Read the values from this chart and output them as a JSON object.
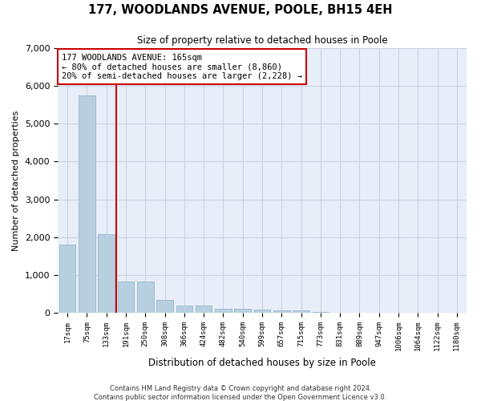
{
  "title": "177, WOODLANDS AVENUE, POOLE, BH15 4EH",
  "subtitle": "Size of property relative to detached houses in Poole",
  "xlabel": "Distribution of detached houses by size in Poole",
  "ylabel": "Number of detached properties",
  "categories": [
    "17sqm",
    "75sqm",
    "133sqm",
    "191sqm",
    "250sqm",
    "308sqm",
    "366sqm",
    "424sqm",
    "482sqm",
    "540sqm",
    "599sqm",
    "657sqm",
    "715sqm",
    "773sqm",
    "831sqm",
    "889sqm",
    "947sqm",
    "1006sqm",
    "1064sqm",
    "1122sqm",
    "1180sqm"
  ],
  "values": [
    1800,
    5750,
    2075,
    820,
    820,
    330,
    200,
    200,
    110,
    110,
    80,
    60,
    60,
    20,
    10,
    10,
    5,
    5,
    5,
    5,
    5
  ],
  "bar_color": "#b8cfe0",
  "bar_edge_color": "#8aafc8",
  "vline_color": "#cc0000",
  "vline_x": 2.5,
  "annotation_line1": "177 WOODLANDS AVENUE: 165sqm",
  "annotation_line2": "← 80% of detached houses are smaller (8,860)",
  "annotation_line3": "20% of semi-detached houses are larger (2,228) →",
  "annotation_box_color": "#ffffff",
  "annotation_box_edge_color": "#cc0000",
  "ylim": [
    0,
    7000
  ],
  "yticks": [
    0,
    1000,
    2000,
    3000,
    4000,
    5000,
    6000,
    7000
  ],
  "grid_color": "#c8d4e4",
  "bg_color": "#e8eef8",
  "footnote1": "Contains HM Land Registry data © Crown copyright and database right 2024.",
  "footnote2": "Contains public sector information licensed under the Open Government Licence v3.0."
}
